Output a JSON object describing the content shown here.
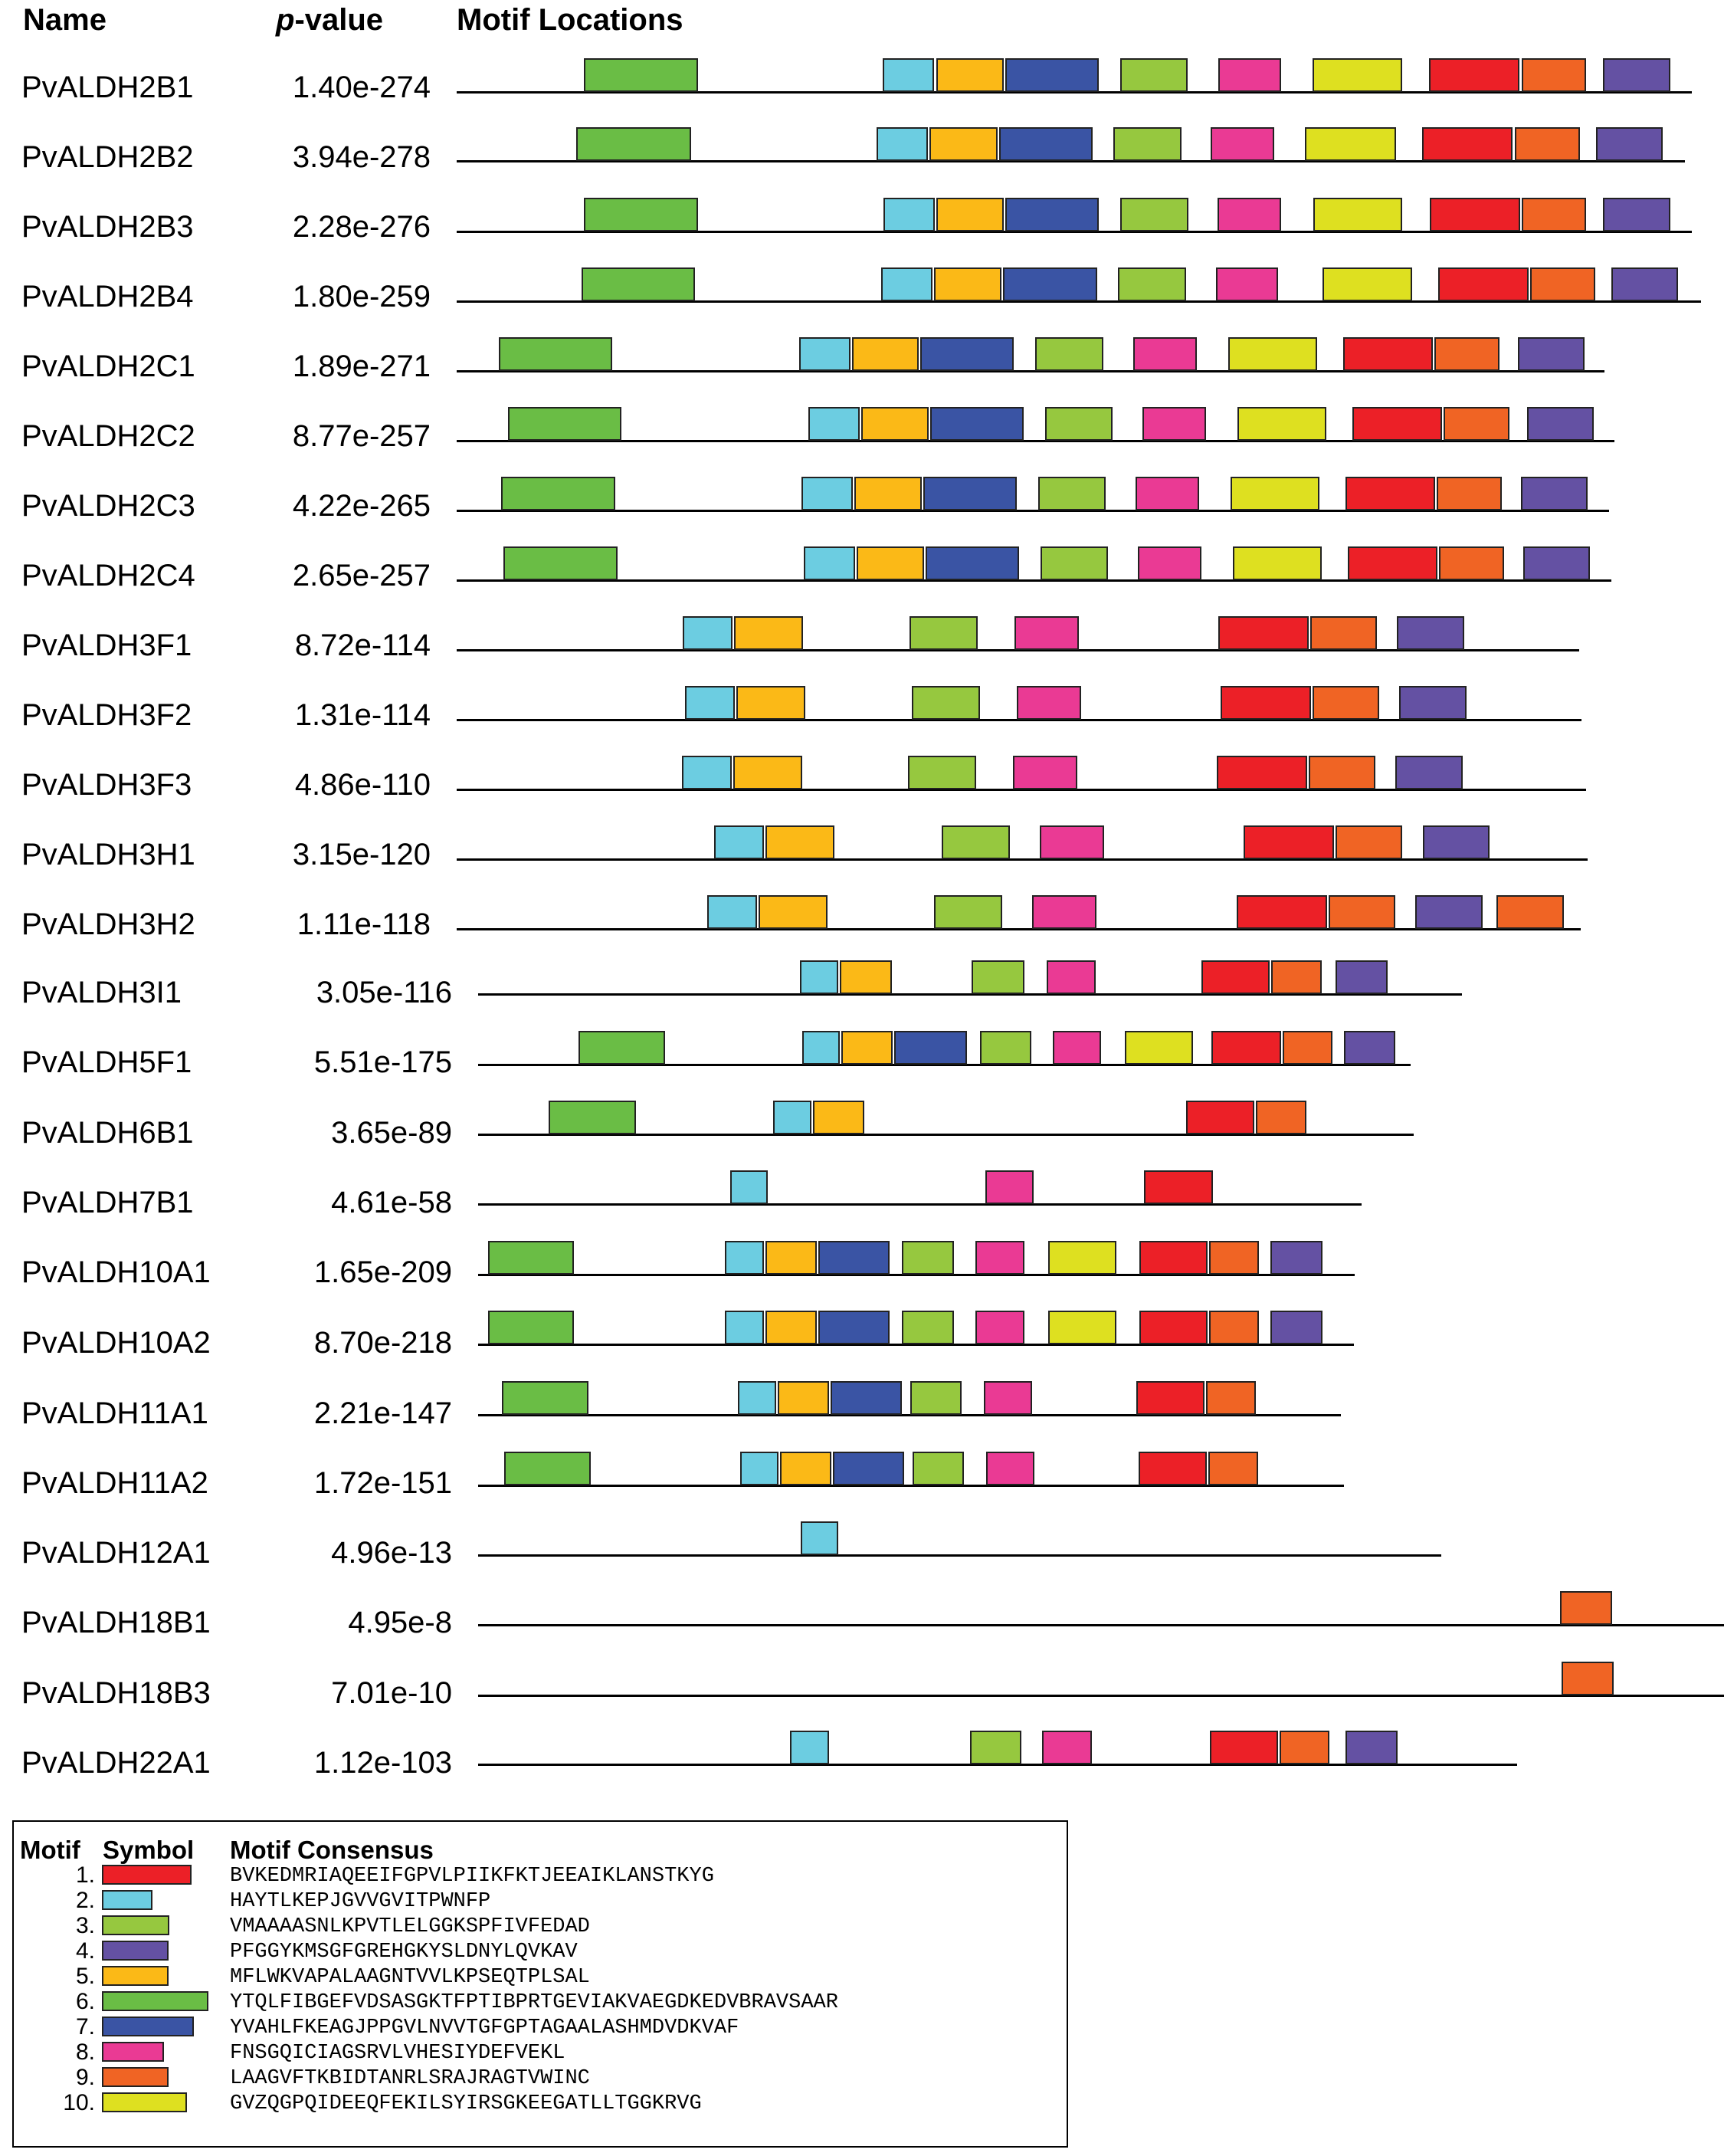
{
  "header": {
    "name": "Name",
    "pvalue_italic": "p",
    "pvalue_rest": "-value",
    "locations": "Motif Locations"
  },
  "colors": {
    "1": "#ec2027",
    "2": "#6ccde1",
    "3": "#96c83f",
    "4": "#6451a3",
    "5": "#fbb917",
    "6": "#6abd45",
    "7": "#3a54a4",
    "8": "#ea3a94",
    "9": "#f06424",
    "10": "#dee020"
  },
  "rows": [
    {
      "name": "PvALDH2B1",
      "pvalue": "1.40e-274",
      "motifs": [
        6,
        2,
        5,
        7,
        3,
        8,
        10,
        1,
        9,
        4
      ]
    },
    {
      "name": "PvALDH2B2",
      "pvalue": "3.94e-278",
      "motifs": [
        6,
        2,
        5,
        7,
        3,
        8,
        10,
        1,
        9,
        4
      ]
    },
    {
      "name": "PvALDH2B3",
      "pvalue": "2.28e-276",
      "motifs": [
        6,
        2,
        5,
        7,
        3,
        8,
        10,
        1,
        9,
        4
      ]
    },
    {
      "name": "PvALDH2B4",
      "pvalue": "1.80e-259",
      "motifs": [
        6,
        2,
        5,
        7,
        3,
        8,
        10,
        1,
        9,
        4
      ]
    },
    {
      "name": "PvALDH2C1",
      "pvalue": "1.89e-271",
      "motifs": [
        6,
        2,
        5,
        7,
        3,
        8,
        10,
        1,
        9,
        4
      ]
    },
    {
      "name": "PvALDH2C2",
      "pvalue": "8.77e-257",
      "motifs": [
        6,
        2,
        5,
        7,
        3,
        8,
        10,
        1,
        9,
        4
      ]
    },
    {
      "name": "PvALDH2C3",
      "pvalue": "4.22e-265",
      "motifs": [
        6,
        2,
        5,
        7,
        3,
        8,
        10,
        1,
        9,
        4
      ]
    },
    {
      "name": "PvALDH2C4",
      "pvalue": "2.65e-257",
      "motifs": [
        6,
        2,
        5,
        7,
        3,
        8,
        10,
        1,
        9,
        4
      ]
    },
    {
      "name": "PvALDH3F1",
      "pvalue": "8.72e-114",
      "motifs": [
        2,
        5,
        3,
        8,
        1,
        9,
        4
      ]
    },
    {
      "name": "PvALDH3F2",
      "pvalue": "1.31e-114",
      "motifs": [
        2,
        5,
        3,
        8,
        1,
        9,
        4
      ]
    },
    {
      "name": "PvALDH3F3",
      "pvalue": "4.86e-110",
      "motifs": [
        2,
        5,
        3,
        8,
        1,
        9,
        4
      ]
    },
    {
      "name": "PvALDH3H1",
      "pvalue": "3.15e-120",
      "motifs": [
        2,
        5,
        3,
        8,
        1,
        9,
        4
      ]
    },
    {
      "name": "PvALDH3H2",
      "pvalue": "1.11e-118",
      "motifs": [
        2,
        5,
        3,
        8,
        1,
        9,
        4,
        9
      ]
    },
    {
      "name": "PvALDH3I1",
      "pvalue": "3.05e-116",
      "motifs": [
        2,
        5,
        3,
        8,
        1,
        9,
        4
      ]
    },
    {
      "name": "PvALDH5F1",
      "pvalue": "5.51e-175",
      "motifs": [
        6,
        2,
        5,
        7,
        3,
        8,
        10,
        1,
        9,
        4
      ]
    },
    {
      "name": "PvALDH6B1",
      "pvalue": "3.65e-89",
      "motifs": [
        6,
        2,
        5,
        1,
        9
      ]
    },
    {
      "name": "PvALDH7B1",
      "pvalue": "4.61e-58",
      "motifs": [
        2,
        8,
        1
      ]
    },
    {
      "name": "PvALDH10A1",
      "pvalue": "1.65e-209",
      "motifs": [
        6,
        2,
        5,
        7,
        3,
        8,
        10,
        1,
        9,
        4
      ]
    },
    {
      "name": "PvALDH10A2",
      "pvalue": "8.70e-218",
      "motifs": [
        6,
        2,
        5,
        7,
        3,
        8,
        10,
        1,
        9,
        4
      ]
    },
    {
      "name": "PvALDH11A1",
      "pvalue": "2.21e-147",
      "motifs": [
        6,
        2,
        5,
        7,
        3,
        8,
        1,
        9
      ]
    },
    {
      "name": "PvALDH11A2",
      "pvalue": "1.72e-151",
      "motifs": [
        6,
        2,
        5,
        7,
        3,
        8,
        1,
        9
      ]
    },
    {
      "name": "PvALDH12A1",
      "pvalue": "4.96e-13",
      "motifs": [
        2
      ]
    },
    {
      "name": "PvALDH18B1",
      "pvalue": "4.95e-8",
      "motifs": [
        9
      ]
    },
    {
      "name": "PvALDH18B3",
      "pvalue": "7.01e-10",
      "motifs": [
        9
      ]
    },
    {
      "name": "PvALDH22A1",
      "pvalue": "1.12e-103",
      "motifs": [
        2,
        3,
        8,
        1,
        9,
        4
      ]
    }
  ],
  "legend": {
    "headers": {
      "motif": "Motif",
      "symbol": "Symbol",
      "consensus": "Motif Consensus"
    },
    "items": [
      {
        "num": "1.",
        "motif": 1,
        "consensus": "BVKEDMRIAQEEIFGPVLPIIKFKTJEEAIKLANSTKYG"
      },
      {
        "num": "2.",
        "motif": 2,
        "consensus": "HAYTLKEPJGVVGVITPWNFP"
      },
      {
        "num": "3.",
        "motif": 3,
        "consensus": "VMAAAASNLKPVTLELGGKSPFIVFEDAD"
      },
      {
        "num": "4.",
        "motif": 4,
        "consensus": "PFGGYKMSGFGREHGKYSLDNYLQVKAV"
      },
      {
        "num": "5.",
        "motif": 5,
        "consensus": "MFLWKVAPALAAGNTVVLKPSEQTPLSAL"
      },
      {
        "num": "6.",
        "motif": 6,
        "consensus": "YTQLFIBGEFVDSASGKTFPTIBPRTGEVIAKVAEGDKEDVBRAVSAAR"
      },
      {
        "num": "7.",
        "motif": 7,
        "consensus": "YVAHLFKEAGJPPGVLNVVTGFGPTAGAALASHMDVDKVAF"
      },
      {
        "num": "8.",
        "motif": 8,
        "consensus": "FNSGQICIAGSRVLVHESIYDEFVEKL"
      },
      {
        "num": "9.",
        "motif": 9,
        "consensus": "LAAGVFTKBIDTANRLSRAJRAGTVWINC"
      },
      {
        "num": "10.",
        "motif": 10,
        "consensus": "GVZQGPQIDEEQFEKILSYIRSGKEEGATLLTGGKRVG"
      }
    ]
  }
}
